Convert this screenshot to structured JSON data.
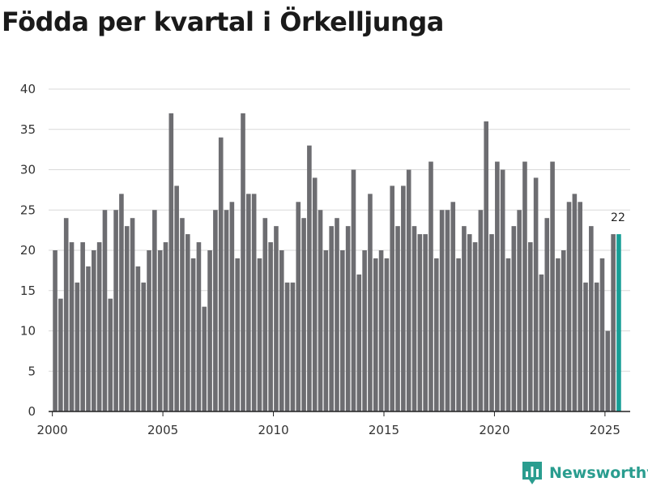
{
  "title": "Födda per kvartal i Örkelljunga",
  "brand": {
    "name": "Newsworthy",
    "icon": "bar-chart-logo-icon"
  },
  "colors": {
    "bar": "#6d6d71",
    "highlight": "#179e96",
    "grid": "#d9d9d9",
    "axis": "#222222",
    "brand": "#2a9d8f"
  },
  "chart_data": {
    "type": "bar",
    "title": "Födda per kvartal i Örkelljunga",
    "xlabel": "",
    "ylabel": "",
    "ylim": [
      0,
      40
    ],
    "yticks": [
      0,
      5,
      10,
      15,
      20,
      25,
      30,
      35,
      40
    ],
    "xlim": [
      1999.83,
      2026.14
    ],
    "xticks": [
      2000,
      2005,
      2010,
      2015,
      2020,
      2025
    ],
    "start_year": 2000,
    "start_quarter": 1,
    "grid": true,
    "legend": "none",
    "highlight_last": true,
    "last_value_label": "22",
    "values": [
      20,
      14,
      24,
      21,
      16,
      21,
      18,
      20,
      21,
      25,
      14,
      25,
      27,
      23,
      24,
      18,
      16,
      20,
      25,
      20,
      21,
      37,
      28,
      24,
      22,
      19,
      21,
      13,
      20,
      25,
      34,
      25,
      26,
      19,
      37,
      27,
      27,
      19,
      24,
      21,
      23,
      20,
      16,
      16,
      26,
      24,
      33,
      29,
      25,
      20,
      23,
      24,
      20,
      23,
      30,
      17,
      20,
      27,
      19,
      20,
      19,
      28,
      23,
      28,
      30,
      23,
      22,
      22,
      31,
      19,
      25,
      25,
      26,
      19,
      23,
      22,
      21,
      25,
      36,
      22,
      31,
      30,
      19,
      23,
      25,
      31,
      21,
      29,
      17,
      24,
      31,
      19,
      20,
      26,
      27,
      26,
      16,
      23,
      16,
      19,
      10,
      22,
      22
    ]
  }
}
